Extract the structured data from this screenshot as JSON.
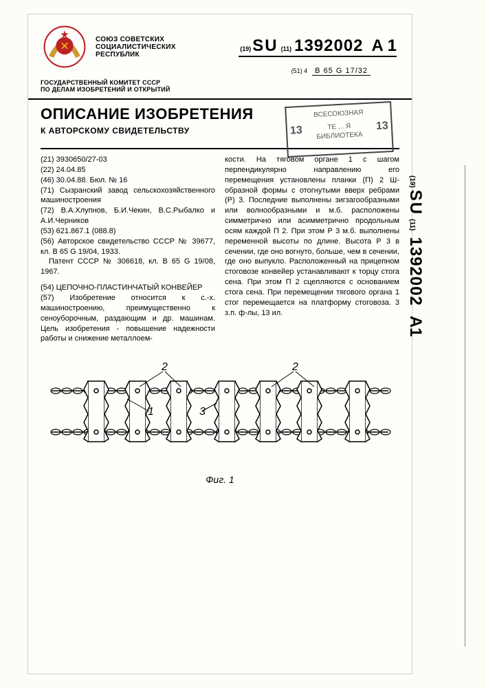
{
  "header": {
    "issuer_line1": "СОЮЗ СОВЕТСКИХ",
    "issuer_line2": "СОЦИАЛИСТИЧЕСКИХ",
    "issuer_line3": "РЕСПУБЛИК",
    "iso_code": "(19)",
    "country_code": "SU",
    "idx_code": "(11)",
    "doc_number": "1392002",
    "kind_code": "A 1",
    "ipc_label": "(51) 4",
    "ipc_value": "B 65 G 17/32",
    "committee_line1": "ГОСУДАРСТВЕННЫЙ КОМИТЕТ СССР",
    "committee_line2": "ПО ДЕЛАМ ИЗОБРЕТЕНИЙ И ОТКРЫТИЙ",
    "title_main": "ОПИСАНИЕ ИЗОБРЕТЕНИЯ",
    "title_sub": "К АВТОРСКОМУ СВИДЕТЕЛЬСТВУ",
    "stamp_line1": "ВСЕСОЮЗНАЯ",
    "stamp_line2": "ТЕ ... Я",
    "stamp_line3": "БИБЛИОТЕКА",
    "stamp_num": "13"
  },
  "left_col": {
    "l21": "(21) 3930650/27-03",
    "l22": "(22) 24.04.85",
    "l46": "(46) 30.04.88. Бюл. № 16",
    "l71": "(71) Сызранский завод сельскохозяйственного машиностроения",
    "l72": "(72) В.А.Хлупнов, Б.И.Чекин, В.С.Рыбалко и А.И.Черников",
    "l53": "(53) 621.867.1 (088.8)",
    "l56": "(56) Авторское свидетельство СССР № 39677, кл. B 65 G 19/04, 1933.",
    "l56b": "Патент СССР № 306618, кл. B 65 G 19/08, 1967.",
    "l54": "(54) ЦЕПОЧНО-ПЛАСТИНЧАТЫЙ КОНВЕЙЕР",
    "l57": "(57) Изобретение относится к с.-х. машиностроению, преимущественно к сеноуборочным, раздающим и др. машинам. Цель изобретения - повышение надежности работы и снижение металлоем-"
  },
  "right_col": {
    "text": "кости. На тяговом органе 1 с шагом перпендикулярно направлению его перемещения установлены планки (П) 2 Ш-образной формы с отогнутыми вверх ребрами (Р) 3. Последние выполнены зигзагообразными или волнообразными и м.б. расположены симметрично или асимметрично продольным осям каждой П 2. При этом Р 3 м.б. выполнены переменной высоты по длине. Высота Р 3 в сечении, где оно вогнуто, больше, чем в сечении, где оно выпукло. Расположенный на прицепном стоговозе конвейер устанавливают к торцу стога сена. При этом П 2 сцепляются с основанием стога сена. При перемещении тягового органа 1 стог перемещается на платформу стоговоза. 3 з.п. ф-лы, 13 ил."
  },
  "figure": {
    "caption": "Фиг. 1",
    "labels": [
      "1",
      "2",
      "3"
    ],
    "colors": {
      "stroke": "#000000",
      "fill_bg": "#fefefb"
    }
  },
  "side": {
    "iso": "(19)",
    "cc": "SU",
    "idx": "(11)",
    "num": "1392002",
    "kind": "A1"
  }
}
